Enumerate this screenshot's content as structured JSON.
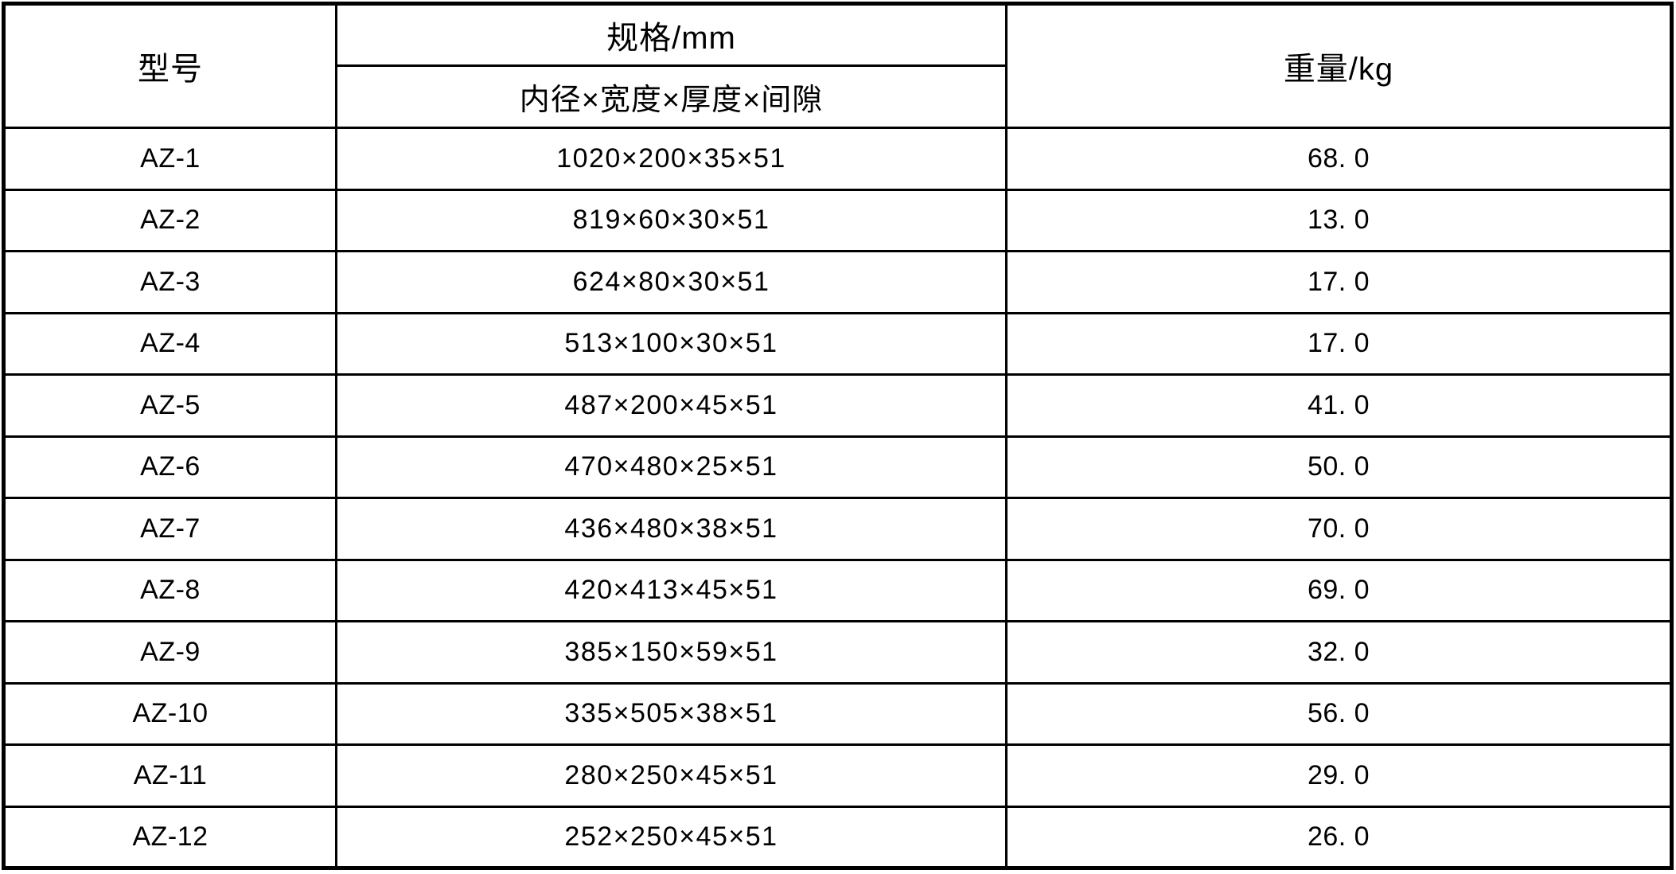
{
  "colors": {
    "border": "#000000",
    "background": "#ffffff",
    "text": "#000000"
  },
  "table": {
    "columns": {
      "model": "型号",
      "spec_group": "规格/mm",
      "spec_sub": "内径×宽度×厚度×间隙",
      "weight": "重量/kg"
    },
    "rows": [
      {
        "model": "AZ-1",
        "spec": "1020×200×35×51",
        "weight": "68. 0"
      },
      {
        "model": "AZ-2",
        "spec": "819×60×30×51",
        "weight": "13. 0"
      },
      {
        "model": "AZ-3",
        "spec": "624×80×30×51",
        "weight": "17. 0"
      },
      {
        "model": "AZ-4",
        "spec": "513×100×30×51",
        "weight": "17. 0"
      },
      {
        "model": "AZ-5",
        "spec": "487×200×45×51",
        "weight": "41. 0"
      },
      {
        "model": "AZ-6",
        "spec": "470×480×25×51",
        "weight": "50. 0"
      },
      {
        "model": "AZ-7",
        "spec": "436×480×38×51",
        "weight": "70. 0"
      },
      {
        "model": "AZ-8",
        "spec": "420×413×45×51",
        "weight": "69. 0"
      },
      {
        "model": "AZ-9",
        "spec": "385×150×59×51",
        "weight": "32. 0"
      },
      {
        "model": "AZ-10",
        "spec": "335×505×38×51",
        "weight": "56. 0"
      },
      {
        "model": "AZ-11",
        "spec": "280×250×45×51",
        "weight": "29. 0"
      },
      {
        "model": "AZ-12",
        "spec": "252×250×45×51",
        "weight": "26. 0"
      }
    ]
  }
}
